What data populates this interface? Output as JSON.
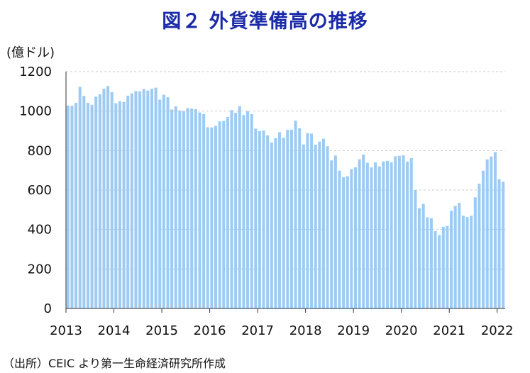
{
  "chart_data": {
    "type": "bar",
    "title": "図２ 外貨準備高の推移",
    "ylabel": "(億ドル)",
    "xlabel": "",
    "ylim": [
      0,
      1200
    ],
    "yticks": [
      0,
      200,
      400,
      600,
      800,
      1000,
      1200
    ],
    "x_tick_labels": [
      "2013",
      "2014",
      "2015",
      "2016",
      "2017",
      "2018",
      "2019",
      "2020",
      "2021",
      "2022"
    ],
    "grid": "horizontal-dashed",
    "bar_color": "#9dcbf3",
    "start_month": "2013-01",
    "series": [
      {
        "values": [
          1028,
          1027,
          1042,
          1123,
          1077,
          1042,
          1032,
          1073,
          1085,
          1113,
          1127,
          1096,
          1040,
          1050,
          1047,
          1078,
          1090,
          1102,
          1100,
          1112,
          1104,
          1113,
          1119,
          1058,
          1083,
          1070,
          1008,
          1024,
          1003,
          1000,
          1015,
          1013,
          1010,
          993,
          985,
          918,
          917,
          925,
          948,
          950,
          970,
          1005,
          991,
          1025,
          980,
          1000,
          985,
          911,
          898,
          902,
          877,
          841,
          863,
          893,
          865,
          905,
          906,
          952,
          913,
          831,
          888,
          886,
          830,
          845,
          860,
          822,
          750,
          775,
          698,
          665,
          670,
          706,
          715,
          756,
          780,
          738,
          715,
          740,
          720,
          745,
          748,
          740,
          771,
          773,
          776,
          744,
          762,
          600,
          508,
          530,
          462,
          458,
          392,
          372,
          414,
          418,
          495,
          520,
          535,
          470,
          463,
          470,
          563,
          632,
          698,
          755,
          770,
          792,
          655,
          642
        ]
      }
    ]
  },
  "source_note": "（出所）CEIC より第一生命経済研究所作成"
}
